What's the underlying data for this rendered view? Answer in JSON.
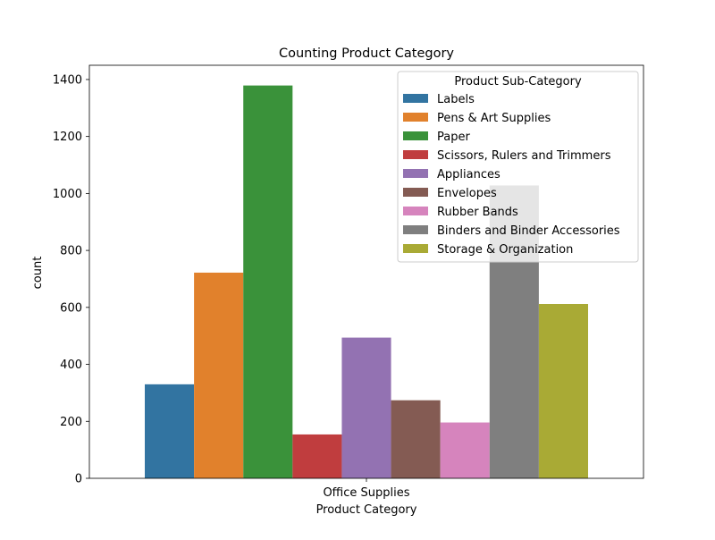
{
  "chart_data": {
    "type": "bar",
    "title": "Counting Product Category",
    "xlabel": "Product Category",
    "ylabel": "count",
    "categories": [
      "Office Supplies"
    ],
    "ylim": [
      0,
      1450
    ],
    "yticks": [
      0,
      200,
      400,
      600,
      800,
      1000,
      1200,
      1400
    ],
    "legend_title": "Product Sub-Category",
    "legend_position": "upper-right",
    "grid": false,
    "series": [
      {
        "name": "Labels",
        "values": [
          330
        ],
        "color": "#3274a1"
      },
      {
        "name": "Pens & Art Supplies",
        "values": [
          722
        ],
        "color": "#e1812c"
      },
      {
        "name": "Paper",
        "values": [
          1379
        ],
        "color": "#3a923a"
      },
      {
        "name": "Scissors, Rulers and Trimmers",
        "values": [
          154
        ],
        "color": "#c03d3e"
      },
      {
        "name": "Appliances",
        "values": [
          494
        ],
        "color": "#9372b2"
      },
      {
        "name": "Envelopes",
        "values": [
          274
        ],
        "color": "#845b53"
      },
      {
        "name": "Rubber Bands",
        "values": [
          196
        ],
        "color": "#d684bd"
      },
      {
        "name": "Binders and Binder Accessories",
        "values": [
          1028
        ],
        "color": "#7f7f7f"
      },
      {
        "name": "Storage & Organization",
        "values": [
          612
        ],
        "color": "#a9aa35"
      }
    ]
  }
}
